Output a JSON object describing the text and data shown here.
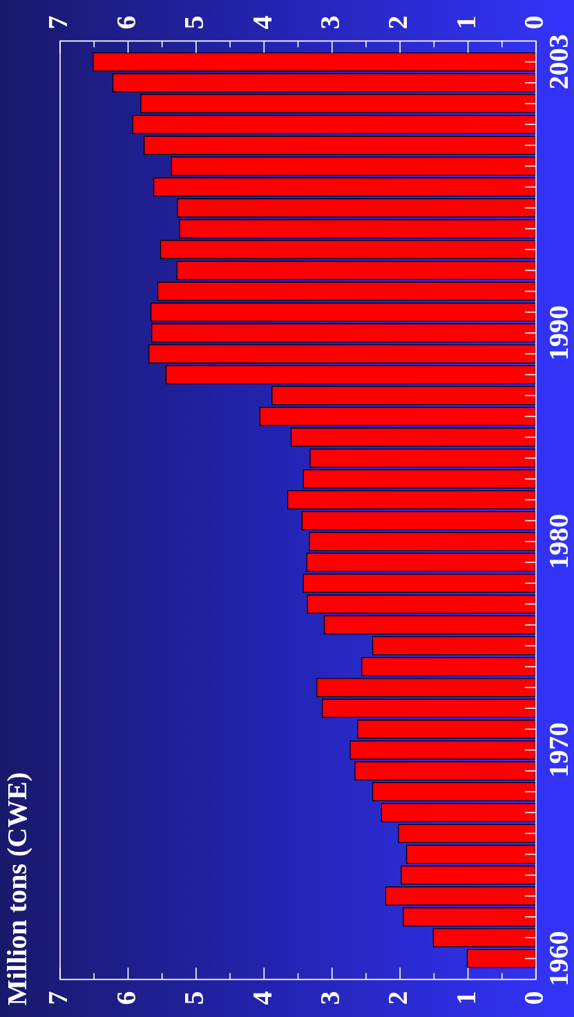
{
  "chart_data": {
    "type": "bar",
    "orientation": "horizontal",
    "title": "Million tons (CWE)",
    "categories": [
      "2003",
      null,
      null,
      null,
      null,
      null,
      null,
      null,
      null,
      null,
      null,
      null,
      null,
      "1990",
      null,
      null,
      null,
      null,
      null,
      null,
      null,
      null,
      null,
      "1980",
      null,
      null,
      null,
      null,
      null,
      null,
      null,
      null,
      null,
      "1970",
      null,
      null,
      null,
      null,
      null,
      null,
      null,
      null,
      null,
      "1960"
    ],
    "values": [
      6.52,
      6.23,
      5.82,
      5.94,
      5.77,
      5.37,
      5.63,
      5.28,
      5.25,
      5.53,
      5.29,
      5.57,
      5.67,
      5.66,
      5.7,
      5.45,
      3.89,
      4.07,
      3.61,
      3.33,
      3.43,
      3.66,
      3.45,
      3.34,
      3.38,
      3.43,
      3.37,
      3.12,
      2.41,
      2.57,
      3.23,
      3.15,
      2.63,
      2.74,
      2.67,
      2.41,
      2.28,
      2.03,
      1.91,
      1.99,
      2.22,
      1.96,
      1.52,
      1.02
    ],
    "color": "#ff0000",
    "xlim": [
      7,
      0
    ],
    "xticks": [
      0,
      {
        "value": 0.5,
        "label": null
      },
      1,
      {
        "value": 1.5,
        "label": null
      },
      2,
      {
        "value": 2.5,
        "label": null
      },
      3,
      {
        "value": 3.5,
        "label": null
      },
      4,
      {
        "value": 4.5,
        "label": null
      },
      5,
      {
        "value": 5.5,
        "label": null
      },
      6,
      {
        "value": 6.5,
        "label": null
      },
      7
    ],
    "x2lim": [
      7,
      0
    ],
    "x2ticks": [
      0,
      {
        "value": 0.5,
        "label": null
      },
      1,
      {
        "value": 1.5,
        "label": null
      },
      2,
      {
        "value": 2.5,
        "label": null
      },
      3,
      {
        "value": 3.5,
        "label": null
      },
      4,
      {
        "value": 4.5,
        "label": null
      },
      5,
      {
        "value": 5.5,
        "label": null
      },
      6,
      {
        "value": 6.5,
        "label": null
      },
      7
    ]
  }
}
